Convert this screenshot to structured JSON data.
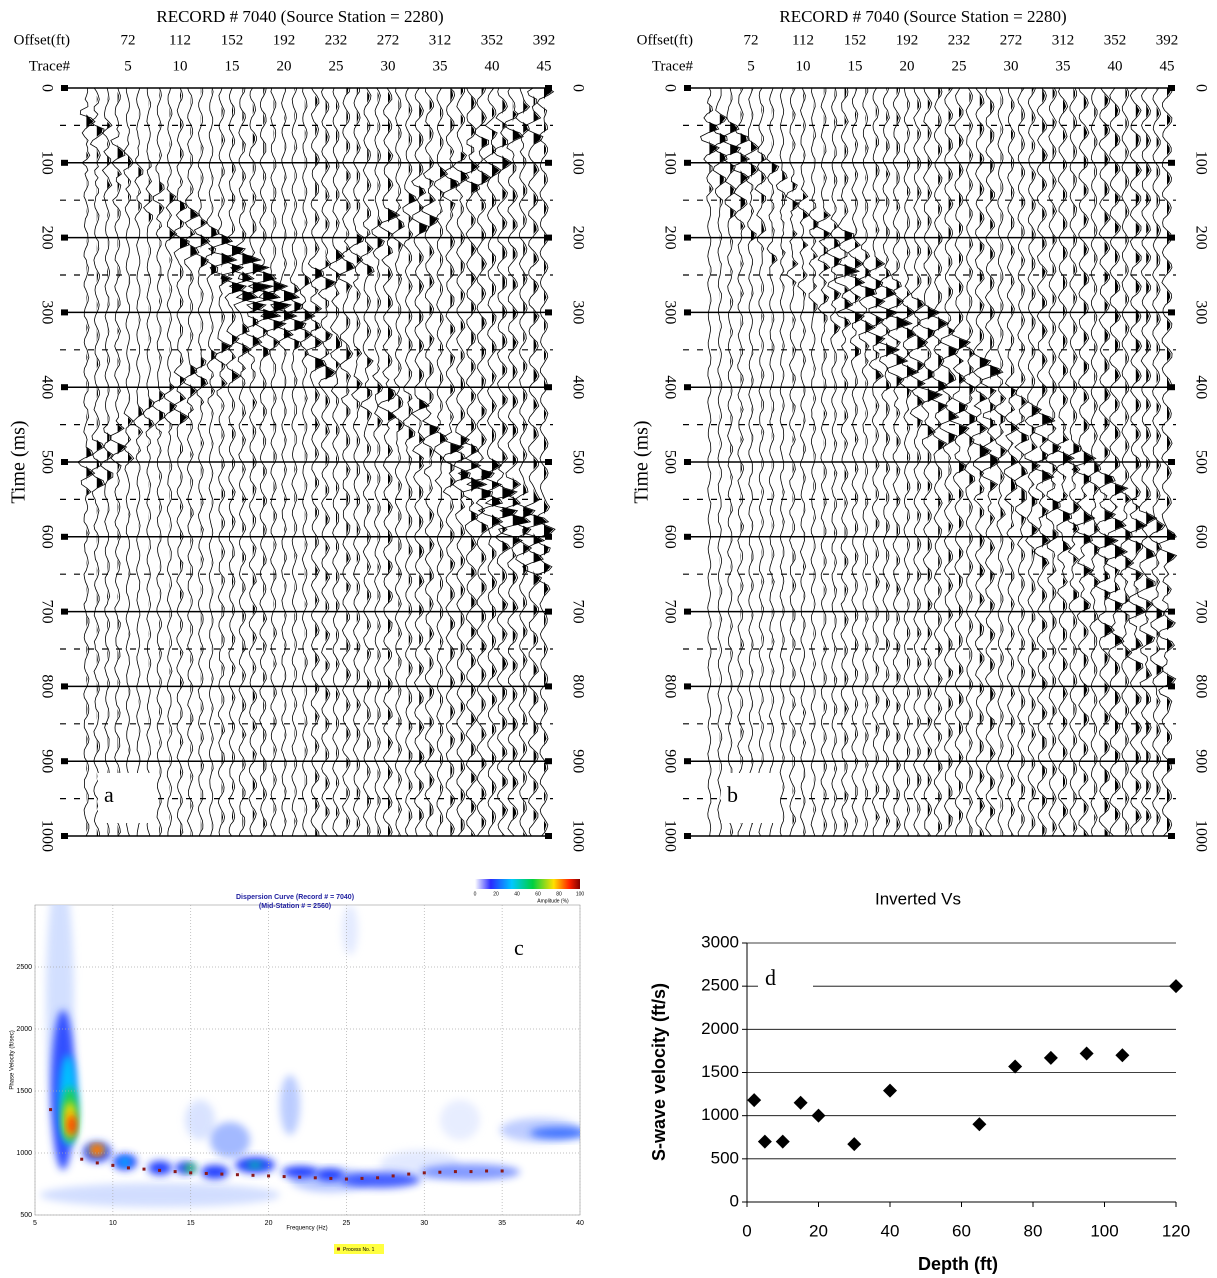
{
  "chart_data": [
    {
      "type": "seismic",
      "title": "RECORD # 7040 (Source Station = 2280)",
      "offset_label": "Offset(ft)",
      "offsets": [
        72,
        112,
        152,
        192,
        232,
        272,
        312,
        352,
        392
      ],
      "trace_label": "Trace#",
      "traces": [
        5,
        10,
        15,
        20,
        25,
        30,
        35,
        40,
        45
      ],
      "ylabel": "Time (ms)",
      "ylim": [
        0,
        1000
      ],
      "yticks": [
        0,
        100,
        200,
        300,
        400,
        500,
        600,
        700,
        800,
        900,
        1000
      ],
      "panel_label": "a"
    },
    {
      "type": "seismic",
      "title": "RECORD # 7040 (Source Station = 2280)",
      "offset_label": "Offset(ft)",
      "offsets": [
        72,
        112,
        152,
        192,
        232,
        272,
        312,
        352,
        392
      ],
      "trace_label": "Trace#",
      "traces": [
        5,
        10,
        15,
        20,
        25,
        30,
        35,
        40,
        45
      ],
      "ylabel": "Time (ms)",
      "ylim": [
        0,
        1000
      ],
      "yticks": [
        0,
        100,
        200,
        300,
        400,
        500,
        600,
        700,
        800,
        900,
        1000
      ],
      "panel_label": "b"
    },
    {
      "type": "dispersion",
      "title": "Dispersion Curve (Record # = 7040)",
      "subtitle": "(Mid-Station # = 2560)",
      "xlabel": "Frequency (Hz)",
      "ylabel": "Phase Velocity (ft/sec)",
      "xlim": [
        5,
        40
      ],
      "xticks": [
        5,
        10,
        15,
        20,
        25,
        30,
        35,
        40
      ],
      "ylim": [
        500,
        3000
      ],
      "yticks": [
        500,
        1000,
        1500,
        2000,
        2500
      ],
      "colorbar_ticks": [
        0,
        20,
        40,
        60,
        80,
        100
      ],
      "colorbar_label": "Amplitude (%)",
      "series": [
        {
          "name": "Process No. 1",
          "color": "#8b1a1a",
          "x": [
            6,
            8,
            9,
            10,
            11,
            12,
            13,
            14,
            15,
            16,
            17,
            18,
            19,
            20,
            21,
            22,
            23,
            24,
            25,
            26,
            27,
            28,
            29,
            30,
            31,
            32,
            33,
            34,
            35
          ],
          "values": [
            1350,
            950,
            920,
            900,
            880,
            870,
            860,
            850,
            840,
            835,
            830,
            825,
            820,
            815,
            810,
            805,
            800,
            795,
            790,
            795,
            800,
            815,
            830,
            840,
            845,
            850,
            850,
            855,
            855
          ]
        }
      ],
      "panel_label": "c"
    },
    {
      "type": "scatter",
      "title": "Inverted Vs",
      "xlabel": "Depth (ft)",
      "ylabel": "S-wave velocity (ft/s)",
      "xlim": [
        0,
        120
      ],
      "xticks": [
        0,
        20,
        40,
        60,
        80,
        100,
        120
      ],
      "ylim": [
        0,
        3000
      ],
      "yticks": [
        0,
        500,
        1000,
        1500,
        2000,
        2500,
        3000
      ],
      "grid": true,
      "color": "#000000",
      "x": [
        2,
        5,
        10,
        15,
        20,
        30,
        40,
        65,
        75,
        85,
        95,
        105,
        120
      ],
      "values": [
        1180,
        700,
        700,
        1150,
        1000,
        670,
        1290,
        900,
        1570,
        1670,
        1720,
        1700,
        2500
      ],
      "panel_label": "d"
    }
  ]
}
